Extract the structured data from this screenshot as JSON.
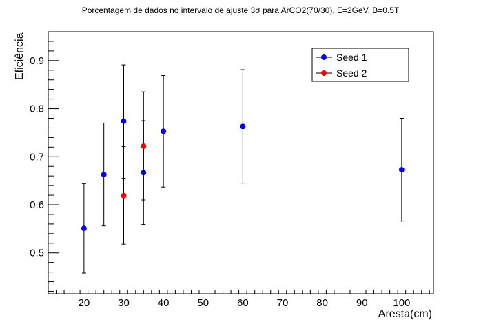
{
  "chart_data": {
    "type": "scatter",
    "title": "Porcentagem de dados no intervalo de ajuste 3σ para ArCO2(70/30), E=2GeV, B=0.5T",
    "xlabel": "Aresta(cm)",
    "ylabel": "Eficiência",
    "xlim": [
      11,
      108
    ],
    "ylim": [
      0.415,
      0.96
    ],
    "x_ticks": [
      20,
      30,
      40,
      50,
      60,
      70,
      80,
      90,
      100
    ],
    "x_tick_labels": [
      "20",
      "30",
      "40",
      "50",
      "60",
      "70",
      "80",
      "90",
      "100"
    ],
    "y_ticks": [
      0.5,
      0.6,
      0.7,
      0.8,
      0.9
    ],
    "y_tick_labels": [
      "0.5",
      "0.6",
      "0.7",
      "0.8",
      "0.9"
    ],
    "grid": false,
    "legend_position": "top-right",
    "series": [
      {
        "name": "Seed 1",
        "color": "#0000ff",
        "points": [
          {
            "x": 20,
            "y": 0.551,
            "err_low": 0.093,
            "err_high": 0.093
          },
          {
            "x": 25,
            "y": 0.663,
            "err_low": 0.107,
            "err_high": 0.107
          },
          {
            "x": 30,
            "y": 0.774,
            "err_low": 0.119,
            "err_high": 0.117
          },
          {
            "x": 35,
            "y": 0.667,
            "err_low": 0.108,
            "err_high": 0.108
          },
          {
            "x": 40,
            "y": 0.753,
            "err_low": 0.116,
            "err_high": 0.116
          },
          {
            "x": 60,
            "y": 0.763,
            "err_low": 0.118,
            "err_high": 0.118
          },
          {
            "x": 100,
            "y": 0.673,
            "err_low": 0.107,
            "err_high": 0.107
          }
        ]
      },
      {
        "name": "Seed 2",
        "color": "#ff0000",
        "points": [
          {
            "x": 30,
            "y": 0.619,
            "err_low": 0.101,
            "err_high": 0.102
          },
          {
            "x": 35,
            "y": 0.722,
            "err_low": 0.112,
            "err_high": 0.113
          }
        ]
      }
    ]
  }
}
